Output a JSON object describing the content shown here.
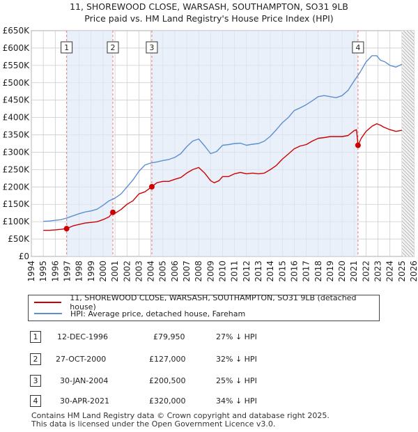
{
  "title_line1": "11, SHOREWOOD CLOSE, WARSASH, SOUTHAMPTON, SO31 9LB",
  "title_line2": "Price paid vs. HM Land Registry's House Price Index (HPI)",
  "colors": {
    "property": "#cc0000",
    "hpi": "#5b8fd0",
    "sale_band": "#dfe9f6",
    "grid": "#cccccc",
    "marker_line": "#ee7777"
  },
  "legend": {
    "property_label": "11, SHOREWOOD CLOSE, WARSASH, SOUTHAMPTON, SO31 9LB (detached house)",
    "hpi_label": "HPI: Average price, detached house, Fareham"
  },
  "sales": [
    {
      "num": "1",
      "date": "12-DEC-1996",
      "price": "£79,950",
      "hpi_diff": "27% ↓ HPI"
    },
    {
      "num": "2",
      "date": "27-OCT-2000",
      "price": "£127,000",
      "hpi_diff": "32% ↓ HPI"
    },
    {
      "num": "3",
      "date": "30-JAN-2004",
      "price": "£200,500",
      "hpi_diff": "25% ↓ HPI"
    },
    {
      "num": "4",
      "date": "30-APR-2021",
      "price": "£320,000",
      "hpi_diff": "34% ↓ HPI"
    }
  ],
  "footer_line1": "Contains HM Land Registry data © Crown copyright and database right 2025.",
  "footer_line2": "This data is licensed under the Open Government Licence v3.0.",
  "chart_data": {
    "type": "line",
    "title": "11, SHOREWOOD CLOSE, WARSASH, SOUTHAMPTON, SO31 9LB",
    "subtitle": "Price paid vs. HM Land Registry's House Price Index (HPI)",
    "xlabel": "",
    "ylabel": "",
    "xlim": [
      1994,
      2026
    ],
    "ylim": [
      0,
      650000
    ],
    "grid": true,
    "x_ticks": [
      1994,
      1995,
      1996,
      1997,
      1998,
      1999,
      2000,
      2001,
      2002,
      2003,
      2004,
      2005,
      2006,
      2007,
      2008,
      2009,
      2010,
      2011,
      2012,
      2013,
      2014,
      2015,
      2016,
      2017,
      2018,
      2019,
      2020,
      2021,
      2022,
      2023,
      2024,
      2025,
      2026
    ],
    "y_ticks": [
      0,
      50000,
      100000,
      150000,
      200000,
      250000,
      300000,
      350000,
      400000,
      450000,
      500000,
      550000,
      600000,
      650000
    ],
    "y_tick_labels": [
      "£0",
      "£50K",
      "£100K",
      "£150K",
      "£200K",
      "£250K",
      "£300K",
      "£350K",
      "£400K",
      "£450K",
      "£500K",
      "£550K",
      "£600K",
      "£650K"
    ],
    "hatched_future_from": 2025.0,
    "sale_markers": [
      {
        "label": "1",
        "x": 1996.95,
        "y": 79950
      },
      {
        "label": "2",
        "x": 2000.82,
        "y": 127000
      },
      {
        "label": "3",
        "x": 2004.08,
        "y": 200500
      },
      {
        "label": "4",
        "x": 2021.33,
        "y": 320000
      }
    ],
    "series": [
      {
        "name": "11, SHOREWOOD CLOSE, WARSASH, SOUTHAMPTON, SO31 9LB (detached house)",
        "x": [
          1995.0,
          1995.5,
          1996.0,
          1996.5,
          1996.95,
          1997.5,
          1998.0,
          1998.5,
          1999.0,
          1999.5,
          2000.0,
          2000.5,
          2000.82,
          2001.0,
          2001.5,
          2002.0,
          2002.5,
          2003.0,
          2003.5,
          2004.08,
          2004.5,
          2005.0,
          2005.5,
          2006.0,
          2006.5,
          2007.0,
          2007.5,
          2008.0,
          2008.5,
          2009.0,
          2009.3,
          2009.7,
          2010.0,
          2010.5,
          2011.0,
          2011.5,
          2012.0,
          2012.5,
          2013.0,
          2013.5,
          2014.0,
          2014.5,
          2015.0,
          2015.5,
          2016.0,
          2016.5,
          2017.0,
          2017.5,
          2018.0,
          2018.5,
          2019.0,
          2019.5,
          2020.0,
          2020.5,
          2021.0,
          2021.2,
          2021.33,
          2021.6,
          2022.0,
          2022.5,
          2022.9,
          2023.2,
          2023.5,
          2024.0,
          2024.5,
          2025.0
        ],
        "values": [
          75000,
          75000,
          76500,
          78000,
          79950,
          88000,
          92000,
          96000,
          98000,
          100000,
          106000,
          114000,
          127000,
          124000,
          135000,
          150000,
          160000,
          180000,
          186000,
          200500,
          212000,
          216000,
          216000,
          222000,
          227000,
          240000,
          250000,
          256000,
          240000,
          218000,
          212000,
          218000,
          230000,
          230000,
          238000,
          242000,
          238000,
          240000,
          238000,
          240000,
          250000,
          262000,
          280000,
          295000,
          310000,
          318000,
          322000,
          332000,
          340000,
          342000,
          345000,
          345000,
          345000,
          348000,
          362000,
          365000,
          320000,
          340000,
          360000,
          375000,
          382000,
          378000,
          372000,
          365000,
          360000,
          363000
        ]
      },
      {
        "name": "HPI: Average price, detached house, Fareham",
        "x": [
          1995.0,
          1995.5,
          1996.0,
          1996.5,
          1997.0,
          1997.5,
          1998.0,
          1998.5,
          1999.0,
          1999.5,
          2000.0,
          2000.5,
          2001.0,
          2001.5,
          2002.0,
          2002.5,
          2003.0,
          2003.5,
          2004.0,
          2004.5,
          2005.0,
          2005.5,
          2006.0,
          2006.5,
          2007.0,
          2007.5,
          2008.0,
          2008.5,
          2009.0,
          2009.5,
          2010.0,
          2010.5,
          2011.0,
          2011.5,
          2012.0,
          2012.5,
          2013.0,
          2013.5,
          2014.0,
          2014.5,
          2015.0,
          2015.5,
          2016.0,
          2016.5,
          2017.0,
          2017.5,
          2018.0,
          2018.5,
          2019.0,
          2019.5,
          2020.0,
          2020.5,
          2021.0,
          2021.5,
          2022.0,
          2022.5,
          2022.9,
          2023.2,
          2023.6,
          2024.0,
          2024.5,
          2025.0
        ],
        "values": [
          101000,
          102000,
          104000,
          106000,
          111000,
          117000,
          123000,
          128000,
          131000,
          136000,
          147000,
          160000,
          168000,
          180000,
          200000,
          220000,
          245000,
          263000,
          269000,
          272000,
          276000,
          279000,
          285000,
          296000,
          316000,
          332000,
          338000,
          318000,
          296000,
          302000,
          320000,
          322000,
          325000,
          326000,
          320000,
          323000,
          325000,
          332000,
          346000,
          365000,
          385000,
          400000,
          420000,
          428000,
          437000,
          448000,
          460000,
          463000,
          460000,
          457000,
          463000,
          478000,
          505000,
          530000,
          560000,
          578000,
          578000,
          565000,
          560000,
          550000,
          545000,
          553000
        ]
      }
    ]
  }
}
